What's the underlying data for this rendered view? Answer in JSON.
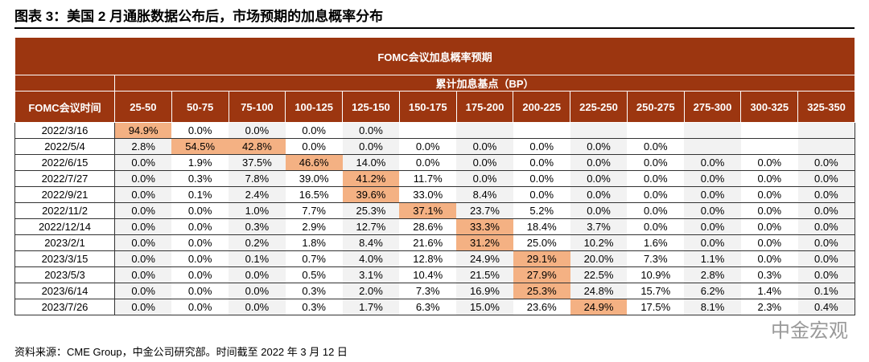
{
  "title": "图表 3：美国 2 月通胀数据公布后，市场预期的加息概率分布",
  "table": {
    "caption": "FOMC会议加息概率预期",
    "group_header": "累计加息基点（BP）",
    "first_header": "FOMC会议时间",
    "columns": [
      "25-50",
      "50-75",
      "75-100",
      "100-125",
      "125-150",
      "150-175",
      "175-200",
      "200-225",
      "225-250",
      "250-275",
      "275-300",
      "300-325",
      "325-350"
    ],
    "rows": [
      {
        "date": "2022/3/16",
        "values": [
          "94.9%",
          "0.0%",
          "0.0%",
          "0.0%",
          "0.0%"
        ],
        "highlight_columns": [
          0
        ]
      },
      {
        "date": "2022/5/4",
        "values": [
          "2.8%",
          "54.5%",
          "42.8%",
          "0.0%",
          "0.0%",
          "0.0%",
          "0.0%",
          "0.0%",
          "0.0%",
          "0.0%"
        ],
        "highlight_columns": [
          1,
          2
        ]
      },
      {
        "date": "2022/6/15",
        "values": [
          "0.0%",
          "1.9%",
          "37.5%",
          "46.6%",
          "14.0%",
          "0.0%",
          "0.0%",
          "0.0%",
          "0.0%",
          "0.0%",
          "0.0%",
          "0.0%",
          "0.0%"
        ],
        "highlight_columns": [
          3
        ]
      },
      {
        "date": "2022/7/27",
        "values": [
          "0.0%",
          "0.3%",
          "7.8%",
          "39.0%",
          "41.2%",
          "11.7%",
          "0.0%",
          "0.0%",
          "0.0%",
          "0.0%",
          "0.0%",
          "0.0%",
          "0.0%"
        ],
        "highlight_columns": [
          4
        ]
      },
      {
        "date": "2022/9/21",
        "values": [
          "0.0%",
          "0.1%",
          "2.4%",
          "16.5%",
          "39.6%",
          "33.0%",
          "8.4%",
          "0.0%",
          "0.0%",
          "0.0%",
          "0.0%",
          "0.0%",
          "0.0%"
        ],
        "highlight_columns": [
          4
        ]
      },
      {
        "date": "2022/11/2",
        "values": [
          "0.0%",
          "0.0%",
          "1.0%",
          "7.7%",
          "25.3%",
          "37.1%",
          "23.7%",
          "5.2%",
          "0.0%",
          "0.0%",
          "0.0%",
          "0.0%",
          "0.0%"
        ],
        "highlight_columns": [
          5
        ]
      },
      {
        "date": "2022/12/14",
        "values": [
          "0.0%",
          "0.0%",
          "0.3%",
          "2.9%",
          "12.7%",
          "28.6%",
          "33.3%",
          "18.4%",
          "3.7%",
          "0.0%",
          "0.0%",
          "0.0%",
          "0.0%"
        ],
        "highlight_columns": [
          6
        ]
      },
      {
        "date": "2023/2/1",
        "values": [
          "0.0%",
          "0.0%",
          "0.2%",
          "1.8%",
          "8.4%",
          "21.6%",
          "31.2%",
          "25.0%",
          "10.2%",
          "1.6%",
          "0.0%",
          "0.0%",
          "0.0%"
        ],
        "highlight_columns": [
          6
        ]
      },
      {
        "date": "2023/3/15",
        "values": [
          "0.0%",
          "0.0%",
          "0.1%",
          "0.7%",
          "4.0%",
          "12.8%",
          "24.9%",
          "29.1%",
          "20.0%",
          "7.3%",
          "1.1%",
          "0.0%",
          "0.0%"
        ],
        "highlight_columns": [
          7
        ]
      },
      {
        "date": "2023/5/3",
        "values": [
          "0.0%",
          "0.0%",
          "0.0%",
          "0.5%",
          "3.1%",
          "10.4%",
          "21.5%",
          "27.9%",
          "22.5%",
          "10.9%",
          "2.8%",
          "0.3%",
          "0.0%"
        ],
        "highlight_columns": [
          7
        ]
      },
      {
        "date": "2023/6/14",
        "values": [
          "0.0%",
          "0.0%",
          "0.0%",
          "0.3%",
          "2.0%",
          "7.3%",
          "16.9%",
          "25.3%",
          "24.8%",
          "15.7%",
          "6.2%",
          "1.4%",
          "0.1%"
        ],
        "highlight_columns": [
          7
        ]
      },
      {
        "date": "2023/7/26",
        "values": [
          "0.0%",
          "0.0%",
          "0.0%",
          "0.3%",
          "1.7%",
          "6.3%",
          "15.0%",
          "23.6%",
          "24.9%",
          "17.5%",
          "8.1%",
          "2.3%",
          "0.4%"
        ],
        "highlight_columns": [
          8
        ]
      }
    ]
  },
  "watermark": "中金宏观",
  "source": "资料来源：CME Group，中金公司研究部。时间截至 2022 年 3 月 12 日"
}
